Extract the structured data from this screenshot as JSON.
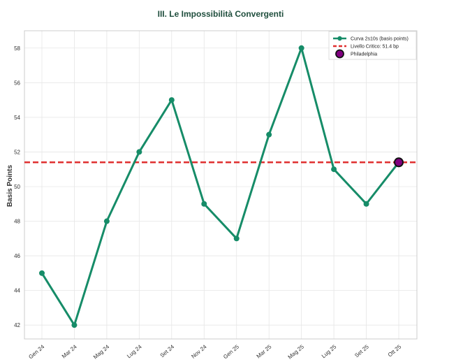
{
  "chart_data": {
    "type": "line",
    "title": "III. Le Impossibilità Convergenti",
    "xlabel": "",
    "ylabel": "Basis Points",
    "categories": [
      "Gen 24",
      "Mar 24",
      "Mag 24",
      "Lug 24",
      "Set 24",
      "Nov 24",
      "Gen 25",
      "Mar 25",
      "Mag 25",
      "Lug 25",
      "Set 25",
      "Ott 25"
    ],
    "series": [
      {
        "name": "Curva 2s10s (basis points)",
        "color": "#168c68",
        "values": [
          45,
          42,
          48,
          52,
          55,
          49,
          47,
          53,
          58,
          51,
          49,
          51.4
        ]
      }
    ],
    "reference_line": {
      "label": "Livello Critico: 51.4 bp",
      "value": 51.4,
      "color": "#e03030",
      "style": "dashed"
    },
    "highlight_point": {
      "label": "Philadelphia",
      "category": "Ott 25",
      "value": 51.4,
      "color": "#800080"
    },
    "yticks": [
      42,
      44,
      46,
      48,
      50,
      52,
      54,
      56,
      58
    ],
    "ylim": [
      41.2,
      59.0
    ],
    "grid": true,
    "legend_position": "top-right"
  }
}
